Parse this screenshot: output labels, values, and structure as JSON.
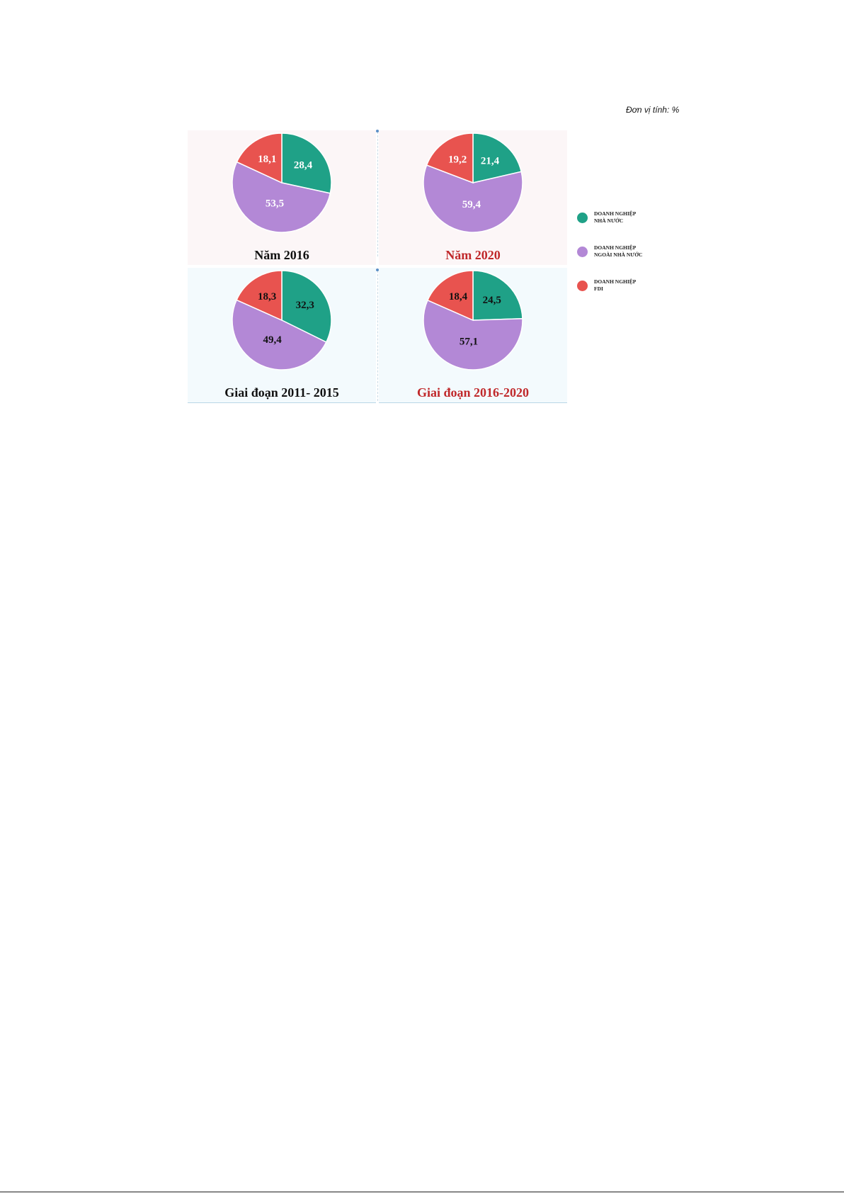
{
  "unit_note": "Đơn vị tính: %",
  "legend": [
    {
      "label_line1": "DOANH NGHIỆP",
      "label_line2": "NHÀ NƯỚC",
      "color": "#1fa187"
    },
    {
      "label_line1": "DOANH NGHIỆP",
      "label_line2": "NGOÀI NHÀ NƯỚC",
      "color": "#b388d6"
    },
    {
      "label_line1": "DOANH NGHIỆP",
      "label_line2": "FDI",
      "color": "#e8534f"
    }
  ],
  "footer": "",
  "chart_data": [
    {
      "type": "pie",
      "title": "Năm 2016",
      "title_color": "#111111",
      "categories": [
        "DOANH NGHIỆP NHÀ NƯỚC",
        "DOANH NGHIỆP NGOÀI NHÀ NƯỚC",
        "DOANH NGHIỆP FDI"
      ],
      "values": [
        28.4,
        53.5,
        18.1
      ],
      "labels": [
        "28,4",
        "53,5",
        "18,1"
      ],
      "label_color": "#ffffff"
    },
    {
      "type": "pie",
      "title": "Năm 2020",
      "title_color": "#c0282a",
      "categories": [
        "DOANH NGHIỆP NHÀ NƯỚC",
        "DOANH NGHIỆP NGOÀI NHÀ NƯỚC",
        "DOANH NGHIỆP FDI"
      ],
      "values": [
        21.4,
        59.4,
        19.2
      ],
      "labels": [
        "21,4",
        "59,4",
        "19,2"
      ],
      "label_color": "#ffffff"
    },
    {
      "type": "pie",
      "title": "Giai đoạn 2011- 2015",
      "title_color": "#111111",
      "categories": [
        "DOANH NGHIỆP NHÀ NƯỚC",
        "DOANH NGHIỆP NGOÀI NHÀ NƯỚC",
        "DOANH NGHIỆP FDI"
      ],
      "values": [
        32.3,
        49.4,
        18.3
      ],
      "labels": [
        "32,3",
        "49,4",
        "18,3"
      ],
      "label_color": "#111111"
    },
    {
      "type": "pie",
      "title": "Giai đoạn 2016-2020",
      "title_color": "#c0282a",
      "categories": [
        "DOANH NGHIỆP NHÀ NƯỚC",
        "DOANH NGHIỆP NGOÀI NHÀ NƯỚC",
        "DOANH NGHIỆP FDI"
      ],
      "values": [
        24.5,
        57.1,
        18.4
      ],
      "labels": [
        "24,5",
        "57,1",
        "18,4"
      ],
      "label_color": "#111111"
    }
  ]
}
